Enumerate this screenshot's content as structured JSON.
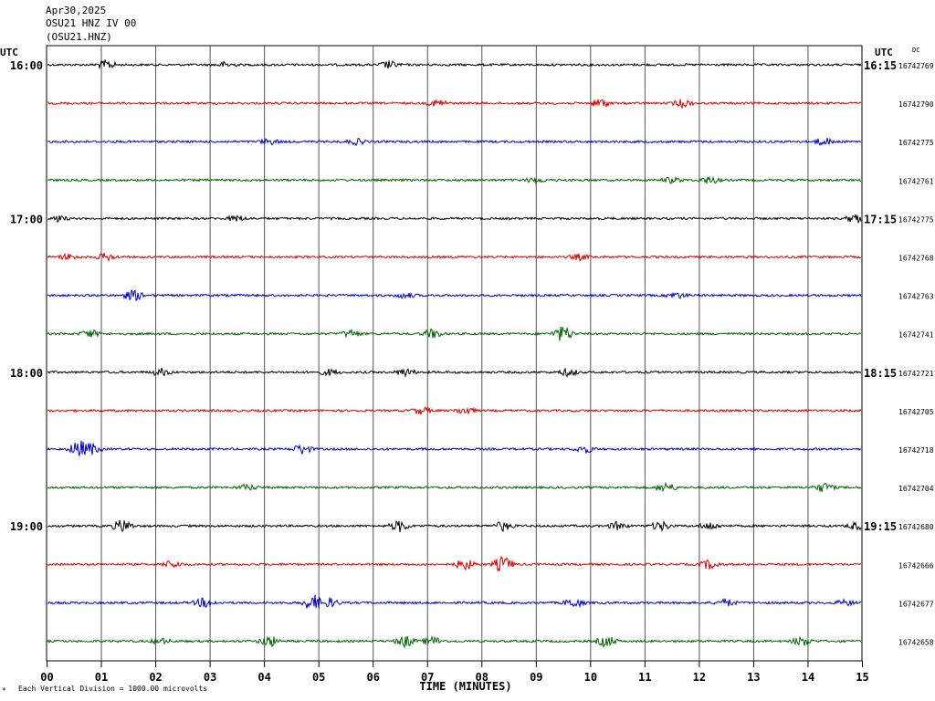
{
  "header": {
    "date": "Apr30,2025",
    "station": "OSU21 HNZ IV 00",
    "channel": "(OSU21.HNZ)"
  },
  "labels": {
    "utc_left": "UTC",
    "utc_right": "UTC",
    "dc": "DC",
    "xlabel": "TIME (MINUTES)",
    "footnote": "Each Vertical Division = 1000.00 microvolts"
  },
  "chart_data": {
    "type": "line",
    "title": "",
    "xlabel": "TIME (MINUTES)",
    "x_ticks": [
      "00",
      "01",
      "02",
      "03",
      "04",
      "05",
      "06",
      "07",
      "08",
      "09",
      "10",
      "11",
      "12",
      "13",
      "14",
      "15"
    ],
    "xlim": [
      0,
      15
    ],
    "grid": true,
    "row_colors": [
      "#000000",
      "#e00000",
      "#0000cc",
      "#006600"
    ],
    "left_hour_labels": [
      {
        "row": 0,
        "text": "16:00"
      },
      {
        "row": 4,
        "text": "17:00"
      },
      {
        "row": 8,
        "text": "18:00"
      },
      {
        "row": 12,
        "text": "19:00"
      }
    ],
    "right_hour_labels": [
      {
        "row": 0,
        "text": "16:15"
      },
      {
        "row": 4,
        "text": "17:15"
      },
      {
        "row": 8,
        "text": "18:15"
      },
      {
        "row": 12,
        "text": "19:15"
      }
    ],
    "traces": [
      {
        "row": 0,
        "dc": "16742769",
        "events": [
          [
            1.1,
            5
          ],
          [
            3.3,
            3
          ],
          [
            6.3,
            4
          ]
        ]
      },
      {
        "row": 1,
        "dc": "16742790",
        "events": [
          [
            7.2,
            4
          ],
          [
            10.2,
            5
          ],
          [
            11.7,
            4
          ]
        ]
      },
      {
        "row": 2,
        "dc": "16742775",
        "events": [
          [
            4.1,
            3
          ],
          [
            5.7,
            3
          ],
          [
            14.3,
            4
          ]
        ]
      },
      {
        "row": 3,
        "dc": "16742761",
        "events": [
          [
            9.0,
            3
          ],
          [
            11.5,
            3
          ],
          [
            12.2,
            4
          ]
        ]
      },
      {
        "row": 4,
        "dc": "16742775",
        "events": [
          [
            0.2,
            3
          ],
          [
            3.5,
            3
          ],
          [
            14.9,
            5
          ]
        ]
      },
      {
        "row": 5,
        "dc": "16742768",
        "events": [
          [
            0.4,
            3
          ],
          [
            1.1,
            4
          ],
          [
            9.8,
            3
          ]
        ]
      },
      {
        "row": 6,
        "dc": "16742763",
        "events": [
          [
            1.6,
            6
          ],
          [
            6.6,
            3
          ],
          [
            11.6,
            3
          ]
        ]
      },
      {
        "row": 7,
        "dc": "16742741",
        "events": [
          [
            0.8,
            4
          ],
          [
            5.6,
            4
          ],
          [
            7.1,
            5
          ],
          [
            9.5,
            9
          ]
        ]
      },
      {
        "row": 8,
        "dc": "16742721",
        "events": [
          [
            2.1,
            4
          ],
          [
            5.2,
            3
          ],
          [
            6.6,
            4
          ],
          [
            9.6,
            4
          ]
        ]
      },
      {
        "row": 9,
        "dc": "16742705",
        "events": [
          [
            6.9,
            4
          ],
          [
            7.7,
            4
          ]
        ]
      },
      {
        "row": 10,
        "dc": "16742718",
        "events": [
          [
            0.6,
            10
          ],
          [
            0.8,
            7
          ],
          [
            4.7,
            5
          ],
          [
            9.9,
            4
          ]
        ]
      },
      {
        "row": 11,
        "dc": "16742704",
        "events": [
          [
            3.7,
            3
          ],
          [
            11.4,
            5
          ],
          [
            14.3,
            5
          ]
        ]
      },
      {
        "row": 12,
        "dc": "16742680",
        "events": [
          [
            1.4,
            7
          ],
          [
            6.5,
            6
          ],
          [
            8.4,
            5
          ],
          [
            10.5,
            4
          ],
          [
            11.3,
            5
          ],
          [
            12.2,
            4
          ],
          [
            14.9,
            4
          ]
        ]
      },
      {
        "row": 13,
        "dc": "16742666",
        "events": [
          [
            2.3,
            4
          ],
          [
            7.7,
            6
          ],
          [
            8.4,
            9
          ],
          [
            12.2,
            5
          ]
        ]
      },
      {
        "row": 14,
        "dc": "16742677",
        "events": [
          [
            2.9,
            5
          ],
          [
            4.9,
            9
          ],
          [
            5.2,
            5
          ],
          [
            9.7,
            5
          ],
          [
            12.5,
            4
          ],
          [
            14.7,
            3
          ]
        ]
      },
      {
        "row": 15,
        "dc": "16742658",
        "events": [
          [
            2.1,
            3
          ],
          [
            4.1,
            6
          ],
          [
            6.6,
            6
          ],
          [
            7.1,
            5
          ],
          [
            10.3,
            6
          ],
          [
            13.9,
            5
          ]
        ]
      }
    ]
  }
}
